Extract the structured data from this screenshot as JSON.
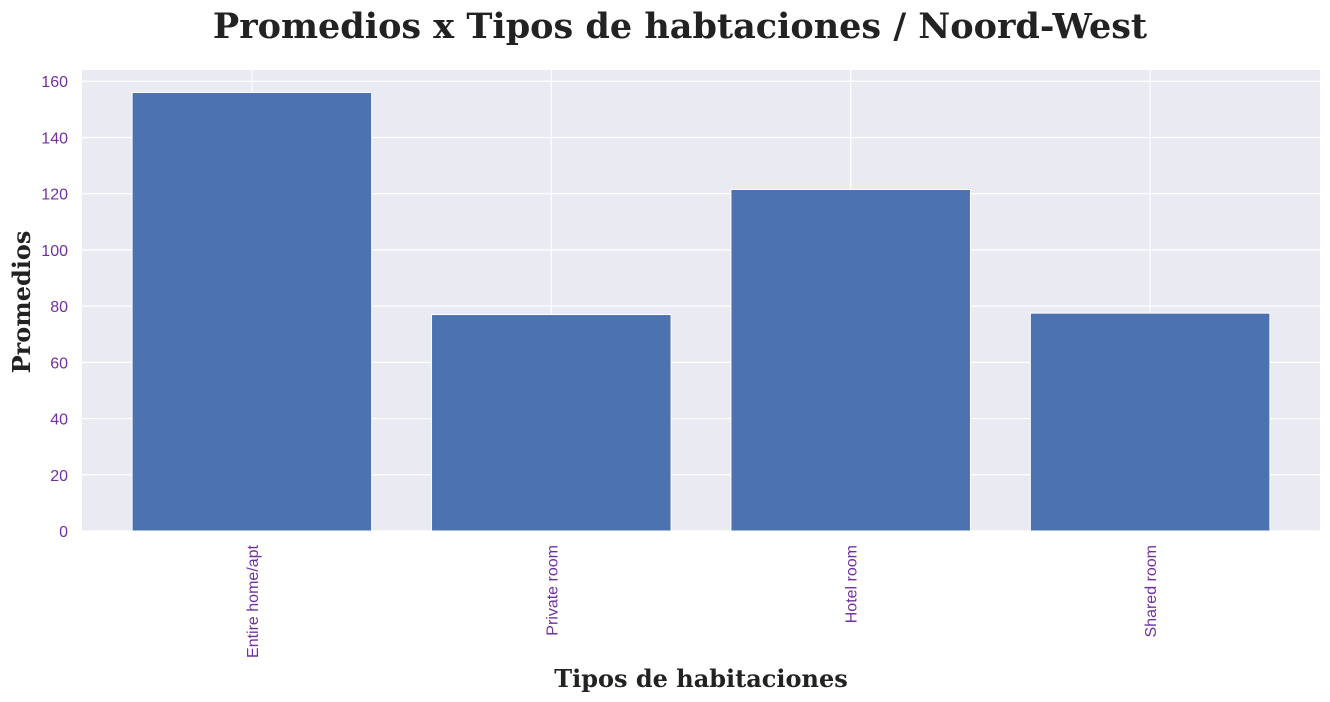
{
  "chart_data": {
    "type": "bar",
    "title": "Promedios x Tipos de habtaciones / Noord-West",
    "xlabel": "Tipos de habitaciones",
    "ylabel": "Promedios",
    "categories": [
      "Entire home/apt",
      "Private room",
      "Hotel room",
      "Shared room"
    ],
    "values": [
      156,
      77,
      121.5,
      77.5
    ],
    "ylim": [
      0,
      164
    ],
    "yticks": [
      0,
      20,
      40,
      60,
      80,
      100,
      120,
      140,
      160
    ],
    "grid": true,
    "legend": "none"
  },
  "colors": {
    "bar": "#4c72b0",
    "plot_background": "#eaeaf2",
    "grid": "#ffffff",
    "tick_label": "#7030a0"
  }
}
